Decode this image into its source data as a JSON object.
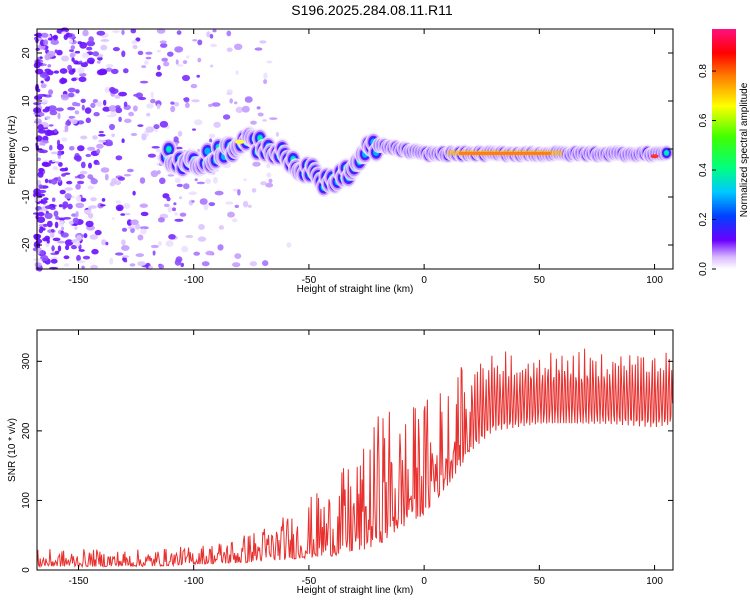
{
  "title": "S196.2025.284.08.11.R11",
  "colors": {
    "trace": "#e8312f",
    "frame": "#000000",
    "background": "#ffffff"
  },
  "chart_data": [
    {
      "type": "heatmap",
      "xlabel": "Height of straight line (km)",
      "ylabel": "Frequency (Hz)",
      "xlim": [
        -168,
        108
      ],
      "ylim": [
        -25,
        25
      ],
      "xticks": [
        -150,
        -100,
        -50,
        0,
        50,
        100
      ],
      "yticks": [
        -20,
        -10,
        0,
        10,
        20
      ],
      "colorbar": {
        "label": "Normalized spectral amplitude",
        "range": [
          0.0,
          0.97
        ],
        "ticks": [
          0.0,
          0.2,
          0.4,
          0.6,
          0.8
        ],
        "tick_labels": [
          "0.0",
          "0.2",
          "0.4",
          "0.6",
          "0.8"
        ],
        "colormap": "rainbow (white-violet-blue-cyan-green-yellow-red-magenta)"
      },
      "dominant_ridge": [
        {
          "x": -110,
          "y": -3
        },
        {
          "x": -95,
          "y": -2
        },
        {
          "x": -80,
          "y": 1
        },
        {
          "x": -70,
          "y": 1
        },
        {
          "x": -60,
          "y": -2
        },
        {
          "x": -50,
          "y": -5
        },
        {
          "x": -40,
          "y": -7
        },
        {
          "x": -30,
          "y": -4
        },
        {
          "x": -22,
          "y": 1
        },
        {
          "x": 0,
          "y": -1
        },
        {
          "x": 50,
          "y": -1
        },
        {
          "x": 105,
          "y": -1
        }
      ],
      "noise_region": {
        "x_from": -168,
        "x_to": -90,
        "level": "low (violet)"
      }
    },
    {
      "type": "line",
      "xlabel": "Height of straight line (km)",
      "ylabel": "SNR (10 * v/v)",
      "xlim": [
        -168,
        108
      ],
      "ylim": [
        0,
        345
      ],
      "xticks": [
        -150,
        -100,
        -50,
        0,
        50,
        100
      ],
      "yticks": [
        0,
        100,
        200,
        300
      ],
      "series": [
        {
          "name": "SNR",
          "color": "#e8312f",
          "envelope_x": [
            -168,
            -120,
            -100,
            -80,
            -60,
            -40,
            -25,
            -18,
            -10,
            0,
            10,
            20,
            30,
            50,
            80,
            100,
            108
          ],
          "envelope_low": [
            5,
            5,
            8,
            10,
            15,
            20,
            30,
            40,
            60,
            80,
            120,
            170,
            200,
            210,
            210,
            205,
            210
          ],
          "envelope_high": [
            30,
            30,
            35,
            50,
            80,
            130,
            180,
            250,
            230,
            250,
            280,
            300,
            320,
            320,
            325,
            315,
            320
          ]
        }
      ]
    }
  ]
}
